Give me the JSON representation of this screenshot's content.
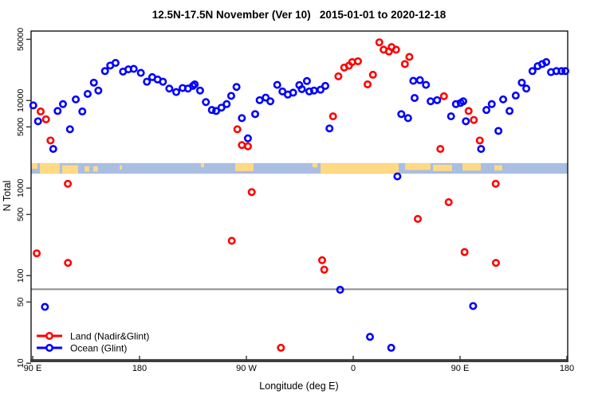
{
  "chart_data": {
    "type": "scatter",
    "title": "12.5N-17.5N November (Ver 10)   2015-01-01 to 2020-12-18",
    "xlabel": "Longitude (deg E)",
    "ylabel": "N Total",
    "x_axis": {
      "description": "longitude unwrapped eastward from 90E to 180 (span 450 deg)",
      "range": [
        90,
        540
      ],
      "ticks": [
        {
          "pos": 90,
          "label": "90 E"
        },
        {
          "pos": 180,
          "label": "180"
        },
        {
          "pos": 270,
          "label": "90 W"
        },
        {
          "pos": 360,
          "label": "0"
        },
        {
          "pos": 450,
          "label": "90 E"
        },
        {
          "pos": 540,
          "label": "180"
        }
      ]
    },
    "y_axis": {
      "scale": "log10",
      "range": [
        10.5,
        63000
      ],
      "ticks": [
        50000,
        10000,
        5000,
        1000,
        500,
        100,
        50,
        10
      ]
    },
    "reference_line": {
      "value": 70,
      "color": "#8C8C8C"
    },
    "map_strip": {
      "value_top": 1930,
      "value_bottom": 1460,
      "ocean_color": "#A9BEE0",
      "land_color": "#FFD985",
      "patches": [
        {
          "lon0": 88,
          "lon1": 94,
          "top": 0,
          "h": 0.55
        },
        {
          "lon0": 96,
          "lon1": 112.8,
          "top": 0,
          "h": 1
        },
        {
          "lon0": 114.8,
          "lon1": 128.3,
          "top": 0.2,
          "h": 0.8
        },
        {
          "lon0": 133.7,
          "lon1": 137.7,
          "top": 0.3,
          "h": 0.5
        },
        {
          "lon0": 141,
          "lon1": 145,
          "top": 0.3,
          "h": 0.5
        },
        {
          "lon0": 163.2,
          "lon1": 165.2,
          "top": 0.2,
          "h": 0.4
        },
        {
          "lon0": 231.7,
          "lon1": 234.4,
          "top": 0,
          "h": 0.4
        },
        {
          "lon0": 260.6,
          "lon1": 276,
          "top": 0,
          "h": 0.75
        },
        {
          "lon0": 325.7,
          "lon1": 329.8,
          "top": 0,
          "h": 0.4
        },
        {
          "lon0": 332.5,
          "lon1": 398.3,
          "top": 0,
          "h": 1
        },
        {
          "lon0": 403.7,
          "lon1": 425.2,
          "top": 0,
          "h": 0.65
        },
        {
          "lon0": 427.2,
          "lon1": 443.3,
          "top": 0.15,
          "h": 0.6
        },
        {
          "lon0": 452,
          "lon1": 467.5,
          "top": 0,
          "h": 0.7
        },
        {
          "lon0": 478.9,
          "lon1": 485.6,
          "top": 0.2,
          "h": 0.5
        }
      ]
    },
    "legend": {
      "position": "bottom-left"
    },
    "series": [
      {
        "name": "Land (Nadir&Glint)",
        "color": "#FF0000",
        "points": [
          [
            96.7,
            7500
          ],
          [
            101.2,
            6100
          ],
          [
            105,
            3500
          ],
          [
            119.6,
            1120
          ],
          [
            262.4,
            4700
          ],
          [
            266.2,
            3100
          ],
          [
            271.3,
            3000
          ],
          [
            274.5,
            900
          ],
          [
            343,
            6600
          ],
          [
            347.5,
            18900
          ],
          [
            352.4,
            23800
          ],
          [
            356.4,
            25000
          ],
          [
            359.1,
            27500
          ],
          [
            364,
            28100
          ],
          [
            372.1,
            15300
          ],
          [
            376.6,
            19700
          ],
          [
            382,
            46200
          ],
          [
            385.6,
            38100
          ],
          [
            390.1,
            36300
          ],
          [
            392.3,
            40800
          ],
          [
            396.1,
            38100
          ],
          [
            403.5,
            26100
          ],
          [
            407.3,
            31500
          ],
          [
            414.4,
            445
          ],
          [
            433.4,
            2800
          ],
          [
            436.4,
            11200
          ],
          [
            440.4,
            690
          ],
          [
            453.8,
            186
          ],
          [
            457.2,
            7600
          ],
          [
            461.6,
            6000
          ],
          [
            466.6,
            3500
          ],
          [
            480,
            1120
          ],
          [
            480.2,
            140
          ],
          [
            93.4,
            180
          ],
          [
            119.7,
            140
          ],
          [
            257.7,
            250
          ],
          [
            299.1,
            15
          ],
          [
            333.8,
            150
          ],
          [
            335.6,
            117
          ]
        ]
      },
      {
        "name": "Ocean (Glint)",
        "color": "#0000FF",
        "points": [
          [
            90.5,
            8800
          ],
          [
            94.5,
            5800
          ],
          [
            107.3,
            2800
          ],
          [
            111,
            7600
          ],
          [
            115.5,
            9100
          ],
          [
            121.4,
            4700
          ],
          [
            126.3,
            10300
          ],
          [
            131.8,
            7500
          ],
          [
            136.3,
            11900
          ],
          [
            141.5,
            16000
          ],
          [
            145.3,
            13000
          ],
          [
            150.9,
            21700
          ],
          [
            155.3,
            25100
          ],
          [
            159.8,
            26900
          ],
          [
            166.1,
            21400
          ],
          [
            170.6,
            22700
          ],
          [
            175.1,
            23000
          ],
          [
            181.1,
            20700
          ],
          [
            186.2,
            16400
          ],
          [
            190.7,
            18500
          ],
          [
            195.2,
            17400
          ],
          [
            199.7,
            16400
          ],
          [
            205.1,
            13700
          ],
          [
            210.9,
            12500
          ],
          [
            216.3,
            13900
          ],
          [
            220.8,
            13700
          ],
          [
            225,
            14700
          ],
          [
            226.5,
            15300
          ],
          [
            231,
            13000
          ],
          [
            235.9,
            9600
          ],
          [
            240.9,
            7800
          ],
          [
            244.5,
            7600
          ],
          [
            249,
            8300
          ],
          [
            253.4,
            9100
          ],
          [
            257.2,
            11300
          ],
          [
            261.7,
            14300
          ],
          [
            266.2,
            6300
          ],
          [
            271.3,
            3700
          ],
          [
            277.4,
            7000
          ],
          [
            281.2,
            10100
          ],
          [
            286.3,
            10800
          ],
          [
            290.2,
            9800
          ],
          [
            296,
            15100
          ],
          [
            300.4,
            12700
          ],
          [
            304.9,
            11700
          ],
          [
            309.4,
            12300
          ],
          [
            314.6,
            15000
          ],
          [
            316.7,
            13500
          ],
          [
            321,
            16700
          ],
          [
            323,
            12700
          ],
          [
            327,
            13000
          ],
          [
            332.5,
            13300
          ],
          [
            336.5,
            14700
          ],
          [
            340,
            4800
          ],
          [
            397.2,
            1360
          ],
          [
            400.5,
            7000
          ],
          [
            406.2,
            6300
          ],
          [
            410.6,
            16800
          ],
          [
            416.2,
            17100
          ],
          [
            421.3,
            15100
          ],
          [
            411.7,
            10700
          ],
          [
            425.2,
            9800
          ],
          [
            430.7,
            10100
          ],
          [
            442.4,
            6600
          ],
          [
            446.5,
            9100
          ],
          [
            450.5,
            9400
          ],
          [
            452.7,
            9800
          ],
          [
            454.9,
            5800
          ],
          [
            467.7,
            2800
          ],
          [
            472.2,
            7800
          ],
          [
            476.7,
            9100
          ],
          [
            482.3,
            4500
          ],
          [
            486.3,
            10300
          ],
          [
            491.7,
            7600
          ],
          [
            496.9,
            11400
          ],
          [
            502,
            16000
          ],
          [
            505.8,
            13700
          ],
          [
            511,
            21700
          ],
          [
            515.4,
            24700
          ],
          [
            519.2,
            26100
          ],
          [
            522.6,
            27500
          ],
          [
            526.6,
            21100
          ],
          [
            531.1,
            21700
          ],
          [
            535.5,
            21700
          ],
          [
            538.7,
            21700
          ],
          [
            100.3,
            44
          ],
          [
            349,
            69
          ],
          [
            461,
            45
          ],
          [
            374.1,
            20
          ],
          [
            392,
            15
          ]
        ]
      }
    ]
  }
}
